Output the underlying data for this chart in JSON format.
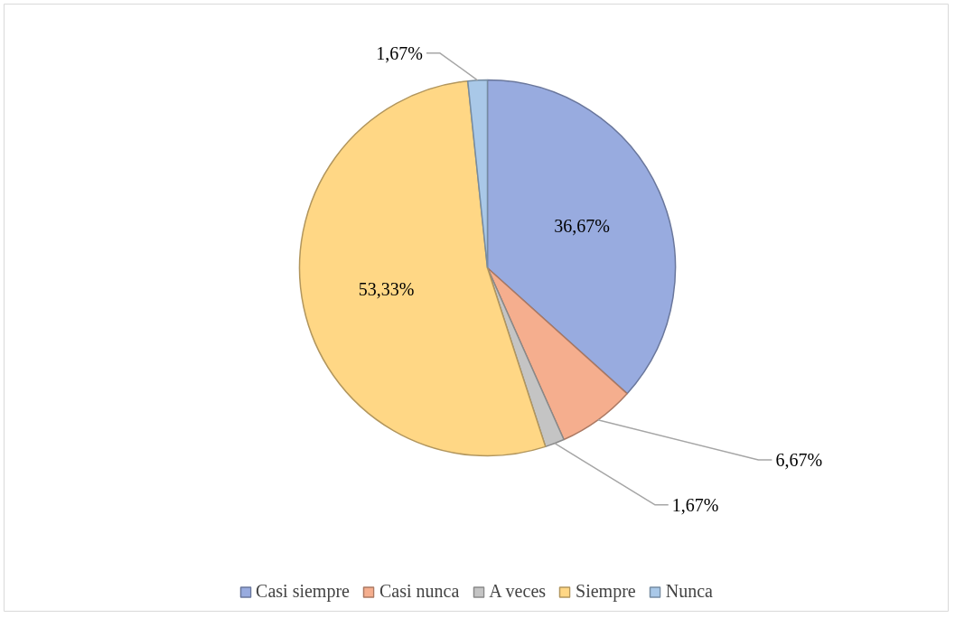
{
  "chart_data": {
    "type": "pie",
    "categories": [
      "Casi siempre",
      "Casi nunca",
      "A veces",
      "Siempre",
      "Nunca"
    ],
    "values": [
      36.67,
      6.67,
      1.67,
      53.33,
      1.67
    ],
    "value_labels": [
      "36,67%",
      "6,67%",
      "1,67%",
      "53,33%",
      "1,67%"
    ],
    "colors": [
      "#98abdf",
      "#f5ae8e",
      "#c4c4c4",
      "#ffd785",
      "#a9c8e8"
    ],
    "legend": "bottom"
  }
}
